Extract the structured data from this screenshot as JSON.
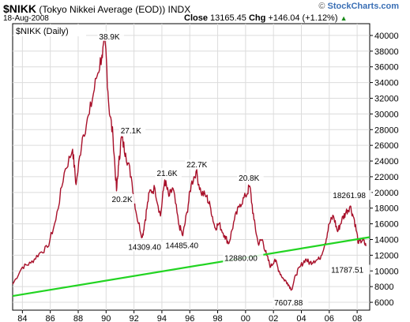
{
  "header": {
    "symbol": "$NIKK",
    "name": "(Tokyo Nikkei Average (EOD))",
    "exchange": "INDX",
    "date": "18-Aug-2008",
    "close_label": "Close",
    "close_value": "13165.45",
    "chg_label": "Chg",
    "chg_value": "+146.04 (+1.12%)",
    "source": "StockCharts.com",
    "source_mark": "©"
  },
  "colors": {
    "price": "#a8102a",
    "trend": "#22d422",
    "grid": "#dcdcdc",
    "up_arrow": "#1a8a1a"
  },
  "chart_data": {
    "type": "line",
    "title": "$NIKK (Daily)",
    "xlabel": "",
    "ylabel": "",
    "xlim": [
      1983.3,
      2008.9
    ],
    "ylim": [
      5000,
      41500
    ],
    "x_ticks": [
      1984,
      1986,
      1988,
      1990,
      1992,
      1994,
      1996,
      1998,
      2000,
      2002,
      2004,
      2006,
      2008
    ],
    "x_tick_labels": [
      "84",
      "86",
      "88",
      "90",
      "92",
      "94",
      "96",
      "98",
      "00",
      "02",
      "04",
      "06",
      "08"
    ],
    "y_ticks": [
      6000,
      8000,
      10000,
      12000,
      14000,
      16000,
      18000,
      20000,
      22000,
      24000,
      26000,
      28000,
      30000,
      32000,
      34000,
      36000,
      38000,
      40000
    ],
    "y_tick_labels": [
      "6000",
      "8000",
      "10000",
      "12000",
      "14000",
      "16000",
      "18000",
      "20000",
      "22000",
      "24000",
      "26000",
      "28000",
      "30000",
      "32000",
      "34000",
      "36000",
      "38000",
      "40000"
    ],
    "grid": true,
    "y_axis_side": "right",
    "series": [
      {
        "x": [
          1983.3,
          1984.0,
          1984.6,
          1985.2,
          1985.8,
          1986.4,
          1987.0,
          1987.6,
          1987.85,
          1988.3,
          1988.8,
          1989.3,
          1989.7,
          1989.95,
          1990.2,
          1990.5,
          1990.75,
          1990.9,
          1991.1,
          1991.4,
          1991.8,
          1992.2,
          1992.6,
          1992.8,
          1993.1,
          1993.5,
          1993.9,
          1994.2,
          1994.5,
          1994.8,
          1995.2,
          1995.5,
          1995.8,
          1996.1,
          1996.45,
          1996.8,
          1997.2,
          1997.5,
          1997.8,
          1998.1,
          1998.5,
          1998.8,
          1999.2,
          1999.6,
          2000.0,
          2000.3,
          2000.6,
          2000.9,
          2001.2,
          2001.5,
          2001.8,
          2002.1,
          2002.4,
          2002.7,
          2003.0,
          2003.3,
          2003.6,
          2003.9,
          2004.3,
          2004.6,
          2004.9,
          2005.3,
          2005.7,
          2006.0,
          2006.3,
          2006.6,
          2006.9,
          2007.2,
          2007.5,
          2007.8,
          2008.1,
          2008.4,
          2008.63
        ],
        "y": [
          8300,
          10500,
          11000,
          12200,
          13000,
          16500,
          22500,
          25500,
          21000,
          27000,
          30000,
          34500,
          37500,
          38900,
          31000,
          27000,
          20200,
          23500,
          27100,
          25000,
          22000,
          17000,
          14309.4,
          16500,
          20000,
          20500,
          17000,
          21600,
          19500,
          20500,
          16000,
          14485.4,
          17500,
          21000,
          22700,
          20000,
          19500,
          18000,
          15500,
          16000,
          14500,
          13500,
          16500,
          18500,
          19500,
          20800,
          16500,
          13500,
          14000,
          12000,
          10500,
          11500,
          10000,
          9000,
          8500,
          7607.88,
          9500,
          10500,
          11500,
          11000,
          11300,
          11500,
          13500,
          16000,
          17000,
          15000,
          16500,
          17500,
          18261.98,
          16500,
          13500,
          14000,
          13165.45
        ]
      },
      {
        "x": [
          1983.3,
          2008.9
        ],
        "y": [
          6800,
          14300
        ]
      }
    ],
    "annotations": [
      {
        "text": "38.9K",
        "x": 1989.95,
        "y": 38900
      },
      {
        "text": "27.1K",
        "x": 1991.1,
        "y": 27100
      },
      {
        "text": "20.2K",
        "x": 1990.75,
        "y": 20200
      },
      {
        "text": "21.6K",
        "x": 1994.2,
        "y": 21600
      },
      {
        "text": "22.7K",
        "x": 1996.45,
        "y": 22700
      },
      {
        "text": "20.8K",
        "x": 2000.3,
        "y": 20800
      },
      {
        "text": "14309.40",
        "x": 1992.6,
        "y": 14309.4
      },
      {
        "text": "14485.40",
        "x": 1995.5,
        "y": 14485.4
      },
      {
        "text": "12880.00",
        "x": 2000.3,
        "y": 12880
      },
      {
        "text": "7607.88",
        "x": 2003.3,
        "y": 7607.88
      },
      {
        "text": "18261.98",
        "x": 2007.5,
        "y": 18261.98
      },
      {
        "text": "11787.51",
        "x": 2008.4,
        "y": 11787.51
      }
    ]
  }
}
